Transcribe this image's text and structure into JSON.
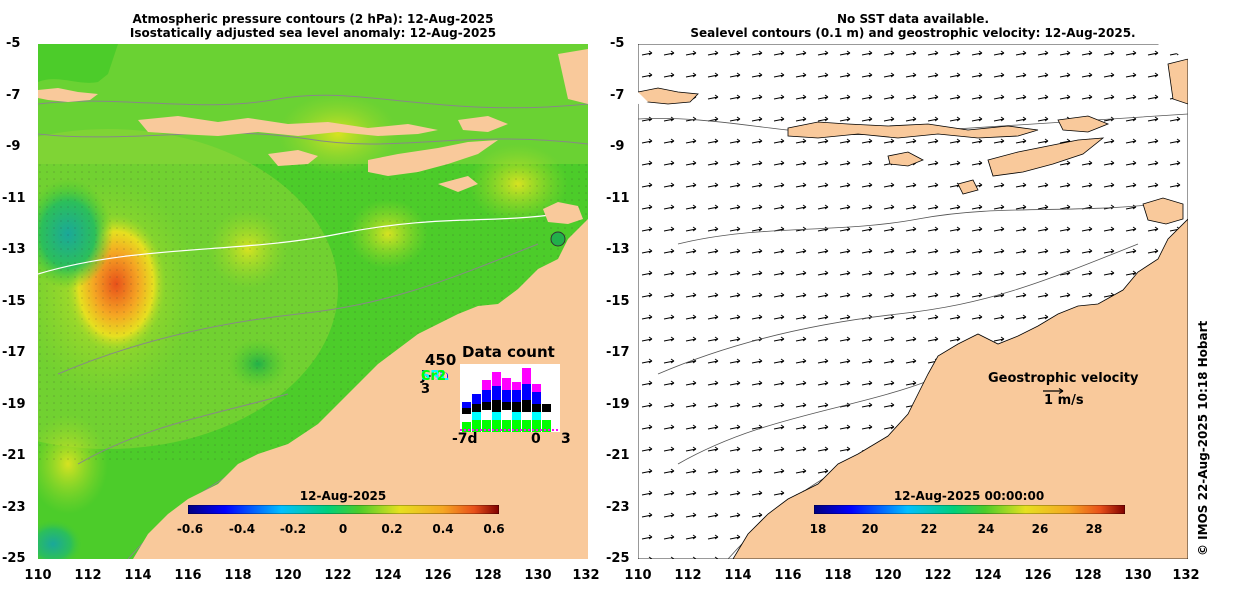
{
  "left_panel": {
    "title_line1": "Atmospheric pressure contours (2 hPa): 12-Aug-2025",
    "title_line2": "Isostatically adjusted sea level anomaly: 12-Aug-2025",
    "colorbar_title": "12-Aug-2025",
    "colorbar_ticks": [
      "-0.6",
      "-0.4",
      "-0.2",
      "0",
      "0.2",
      "0.4",
      "0.6"
    ],
    "data_count": {
      "title": "Data count",
      "max_label": "450",
      "missions": [
        {
          "name": "S6a",
          "color": "#ff00ff"
        },
        {
          "name": "S3b",
          "color": "#0000ff"
        },
        {
          "name": "S3a",
          "color": "#ffd0b0"
        },
        {
          "name": "J-3",
          "color": "#000000"
        },
        {
          "name": "SRL",
          "color": "#00ffff"
        },
        {
          "name": "Cr2",
          "color": "#00ff00"
        }
      ],
      "x_labels": [
        "-7d",
        "0",
        "3"
      ]
    }
  },
  "right_panel": {
    "title_line1": "No SST data available.",
    "title_line2": "Sealevel contours (0.1 m) and geostrophic velocity: 12-Aug-2025.",
    "colorbar_title": "12-Aug-2025 00:00:00",
    "colorbar_ticks": [
      "18",
      "20",
      "22",
      "24",
      "26",
      "28"
    ],
    "legend_title": "Geostrophic velocity",
    "legend_scale": "1 m/s"
  },
  "y_ticks": [
    "-5",
    "-7",
    "-9",
    "-11",
    "-13",
    "-15",
    "-17",
    "-19",
    "-21",
    "-23",
    "-25"
  ],
  "x_ticks": [
    "110",
    "112",
    "114",
    "116",
    "118",
    "120",
    "122",
    "124",
    "126",
    "128",
    "130",
    "132"
  ],
  "credit": "© IMOS 22-Aug-2025 10:18 Hobart",
  "colors": {
    "land": "#f9c99b",
    "ocean_base": "#4ccc2a"
  }
}
